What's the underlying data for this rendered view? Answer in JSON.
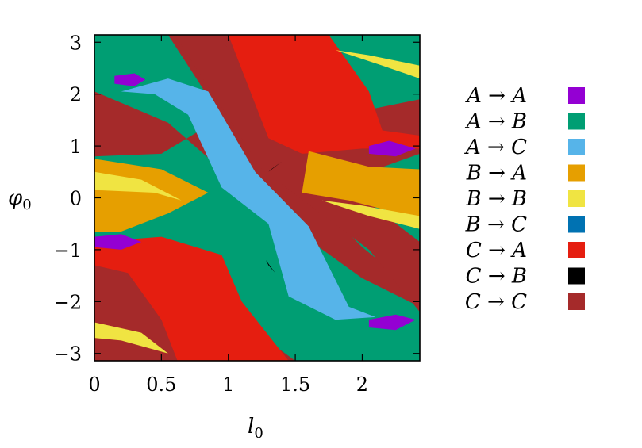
{
  "chart_data": {
    "type": "heatmap",
    "title": "",
    "xlabel": "l",
    "xlabel_sub": "0",
    "ylabel": "φ",
    "ylabel_sub": "0",
    "xlim": [
      0,
      2.43
    ],
    "ylim": [
      -3.1416,
      3.1416
    ],
    "grid": false,
    "legend_position": "right",
    "x_ticks": [
      {
        "value": 0,
        "label": "0"
      },
      {
        "value": 0.5,
        "label": "0.5"
      },
      {
        "value": 1,
        "label": "1"
      },
      {
        "value": 1.5,
        "label": "1.5"
      },
      {
        "value": 2,
        "label": "2"
      }
    ],
    "y_ticks": [
      {
        "value": 3,
        "label": "3"
      },
      {
        "value": 2,
        "label": "2"
      },
      {
        "value": 1,
        "label": "1"
      },
      {
        "value": 0,
        "label": "0"
      },
      {
        "value": -1,
        "label": "−1"
      },
      {
        "value": -2,
        "label": "−2"
      },
      {
        "value": -3,
        "label": "−3"
      }
    ],
    "categories": [
      {
        "label": "A → A",
        "color": "#9400d3"
      },
      {
        "label": "A → B",
        "color": "#009e73"
      },
      {
        "label": "A → C",
        "color": "#56b4e9"
      },
      {
        "label": "B → A",
        "color": "#e69f00"
      },
      {
        "label": "B → B",
        "color": "#f0e442"
      },
      {
        "label": "B → C",
        "color": "#0072b2"
      },
      {
        "label": "C → A",
        "color": "#e51e10"
      },
      {
        "label": "C → B",
        "color": "#000000"
      },
      {
        "label": "C → C",
        "color": "#a52a2a"
      }
    ],
    "regions": [
      {
        "category": "A → B",
        "polygon": [
          [
            0,
            -3.1416
          ],
          [
            2.43,
            -3.1416
          ],
          [
            2.43,
            3.1416
          ],
          [
            0,
            3.1416
          ]
        ]
      },
      {
        "category": "C → C",
        "polygon": [
          [
            0,
            2.05
          ],
          [
            0.55,
            1.45
          ],
          [
            1.3,
            -0.25
          ],
          [
            2.0,
            -1.55
          ],
          [
            2.43,
            -2.1
          ],
          [
            2.43,
            -1.85
          ],
          [
            2.0,
            -0.95
          ],
          [
            1.75,
            -0.3
          ],
          [
            2.05,
            0.5
          ],
          [
            2.43,
            0.85
          ],
          [
            2.43,
            1.9
          ],
          [
            2.05,
            1.7
          ],
          [
            1.6,
            2.1
          ],
          [
            1.0,
            3.1416
          ],
          [
            0.55,
            3.1416
          ],
          [
            0.95,
            1.55
          ],
          [
            0.5,
            0.85
          ],
          [
            0,
            0.8
          ]
        ]
      },
      {
        "category": "C → C",
        "polygon": [
          [
            0,
            -0.9
          ],
          [
            0.75,
            -1.5
          ],
          [
            1.0,
            -2.2
          ],
          [
            1.5,
            -3.1416
          ],
          [
            0,
            -3.1416
          ]
        ]
      },
      {
        "category": "C → C",
        "polygon": [
          [
            0.9,
            3.1416
          ],
          [
            1.3,
            2.1
          ],
          [
            1.7,
            0.6
          ],
          [
            2.43,
            -0.85
          ],
          [
            2.43,
            -2.2
          ],
          [
            2.05,
            -1.0
          ],
          [
            1.25,
            0.55
          ],
          [
            0.6,
            3.1416
          ]
        ]
      },
      {
        "category": "C → A",
        "polygon": [
          [
            0.88,
            3.1416
          ],
          [
            1.75,
            3.1416
          ],
          [
            2.05,
            2.05
          ],
          [
            2.15,
            1.3
          ],
          [
            2.43,
            1.2
          ],
          [
            2.43,
            0.95
          ],
          [
            2.0,
            0.95
          ],
          [
            1.55,
            0.85
          ],
          [
            1.3,
            1.15
          ],
          [
            1.0,
            3.1416
          ]
        ]
      },
      {
        "category": "C → A",
        "polygon": [
          [
            0,
            -0.85
          ],
          [
            0.5,
            -0.75
          ],
          [
            0.95,
            -1.1
          ],
          [
            1.1,
            -2.0
          ],
          [
            1.45,
            -3.1416
          ],
          [
            0.62,
            -3.1416
          ],
          [
            0.5,
            -2.35
          ],
          [
            0.25,
            -1.45
          ],
          [
            0,
            -1.3
          ]
        ]
      },
      {
        "category": "B → A",
        "polygon": [
          [
            0,
            0.75
          ],
          [
            0.5,
            0.55
          ],
          [
            0.85,
            0.1
          ],
          [
            0.55,
            -0.3
          ],
          [
            0.2,
            -0.65
          ],
          [
            0,
            -0.65
          ]
        ]
      },
      {
        "category": "B → A",
        "polygon": [
          [
            1.6,
            0.9
          ],
          [
            2.05,
            0.6
          ],
          [
            2.43,
            0.55
          ],
          [
            2.43,
            -0.4
          ],
          [
            1.9,
            -0.05
          ],
          [
            1.55,
            0.1
          ]
        ]
      },
      {
        "category": "B → B",
        "polygon": [
          [
            0,
            0.5
          ],
          [
            0.35,
            0.35
          ],
          [
            0.65,
            -0.05
          ],
          [
            0.45,
            0.1
          ],
          [
            0,
            0.15
          ]
        ]
      },
      {
        "category": "B → B",
        "polygon": [
          [
            1.7,
            -0.05
          ],
          [
            2.05,
            -0.35
          ],
          [
            2.43,
            -0.6
          ],
          [
            2.43,
            -0.35
          ],
          [
            2.0,
            -0.15
          ]
        ]
      },
      {
        "category": "B → B",
        "polygon": [
          [
            0,
            -2.4
          ],
          [
            0.35,
            -2.6
          ],
          [
            0.55,
            -3.0
          ],
          [
            0.2,
            -2.75
          ],
          [
            0,
            -2.7
          ]
        ]
      },
      {
        "category": "B → B",
        "polygon": [
          [
            1.8,
            2.85
          ],
          [
            2.15,
            2.55
          ],
          [
            2.43,
            2.3
          ],
          [
            2.43,
            2.55
          ],
          [
            2.05,
            2.75
          ]
        ]
      },
      {
        "category": "A → C",
        "polygon": [
          [
            0.2,
            2.05
          ],
          [
            0.55,
            2.3
          ],
          [
            0.85,
            2.05
          ],
          [
            1.2,
            0.5
          ],
          [
            1.6,
            -0.55
          ],
          [
            1.9,
            -2.1
          ],
          [
            2.1,
            -2.3
          ],
          [
            1.8,
            -2.35
          ],
          [
            1.45,
            -1.9
          ],
          [
            1.3,
            -0.5
          ],
          [
            0.95,
            0.2
          ],
          [
            0.7,
            1.6
          ],
          [
            0.45,
            2.0
          ]
        ]
      },
      {
        "category": "A → A",
        "polygon": [
          [
            0.15,
            2.35
          ],
          [
            0.3,
            2.4
          ],
          [
            0.38,
            2.28
          ],
          [
            0.3,
            2.15
          ],
          [
            0.15,
            2.2
          ]
        ]
      },
      {
        "category": "A → A",
        "polygon": [
          [
            2.05,
            1.0
          ],
          [
            2.2,
            1.1
          ],
          [
            2.4,
            0.95
          ],
          [
            2.25,
            0.8
          ],
          [
            2.05,
            0.85
          ]
        ]
      },
      {
        "category": "A → A",
        "polygon": [
          [
            0,
            -0.75
          ],
          [
            0.2,
            -0.7
          ],
          [
            0.35,
            -0.85
          ],
          [
            0.2,
            -1.0
          ],
          [
            0,
            -0.95
          ]
        ]
      },
      {
        "category": "A → A",
        "polygon": [
          [
            2.05,
            -2.35
          ],
          [
            2.25,
            -2.25
          ],
          [
            2.4,
            -2.35
          ],
          [
            2.25,
            -2.55
          ],
          [
            2.05,
            -2.5
          ]
        ]
      },
      {
        "category": "C → B",
        "polygon": [
          [
            1.3,
            0.5
          ],
          [
            1.4,
            0.7
          ],
          [
            1.32,
            0.55
          ]
        ]
      },
      {
        "category": "C → B",
        "polygon": [
          [
            1.28,
            -1.2
          ],
          [
            1.35,
            -1.45
          ],
          [
            1.3,
            -1.3
          ]
        ]
      }
    ]
  }
}
